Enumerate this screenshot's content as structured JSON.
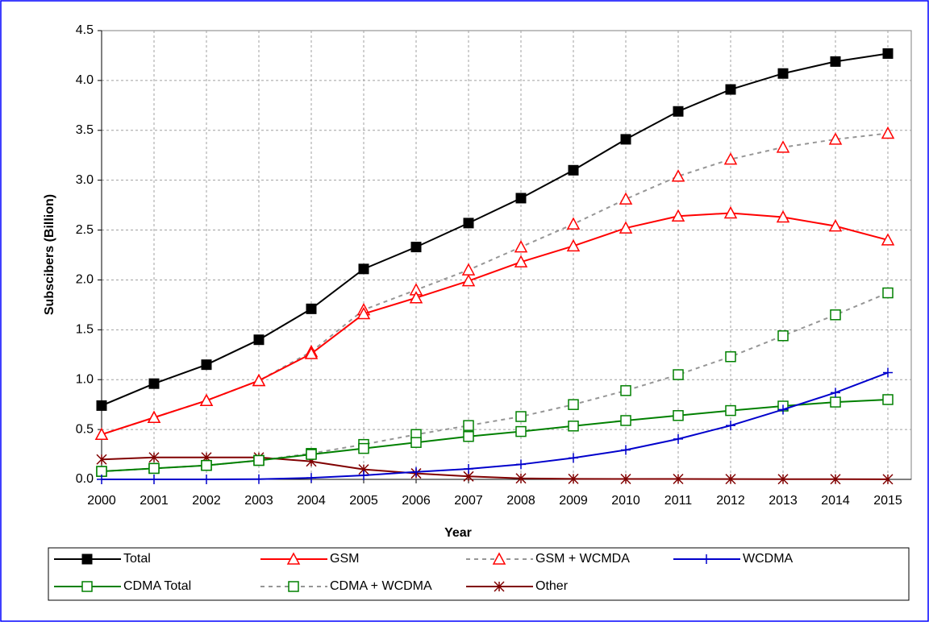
{
  "chart_data": {
    "type": "line",
    "x_label": "Year",
    "y_label": "Subscibers (Billion)",
    "categories": [
      "2000",
      "2001",
      "2002",
      "2003",
      "2004",
      "2005",
      "2006",
      "2007",
      "2008",
      "2009",
      "2010",
      "2011",
      "2012",
      "2013",
      "2014",
      "2015"
    ],
    "ylim": [
      0,
      4.5
    ],
    "yticks": [
      {
        "value": 0,
        "label": "0.0"
      },
      0.5,
      {
        "value": 1,
        "label": "1.0"
      },
      1.5,
      {
        "value": 2,
        "label": "2.0"
      },
      2.5,
      {
        "value": 3,
        "label": "3.0"
      },
      3.5,
      {
        "value": 4,
        "label": "4.0"
      },
      4.5
    ],
    "grid": true,
    "legend": "bottom",
    "series": [
      {
        "name": "Total",
        "color": "#000000",
        "marker_color": "#000000",
        "marker": "square-filled",
        "line_style": "solid",
        "values": [
          0.74,
          0.96,
          1.15,
          1.4,
          1.71,
          2.11,
          2.33,
          2.57,
          2.82,
          3.1,
          3.41,
          3.69,
          3.91,
          4.07,
          4.19,
          4.27
        ]
      },
      {
        "name": "GSM",
        "color": "#ff0000",
        "marker_color": "#ff0000",
        "marker": "triangle-open",
        "line_style": "solid",
        "values": [
          0.45,
          0.62,
          0.79,
          0.99,
          1.26,
          1.66,
          1.82,
          1.99,
          2.18,
          2.34,
          2.52,
          2.64,
          2.67,
          2.63,
          2.54,
          2.4
        ]
      },
      {
        "name": "GSM + WCMDA",
        "color": "#969696",
        "marker_color": "#ff0000",
        "marker": "triangle-open",
        "line_style": "dashed",
        "values": [
          0.45,
          0.62,
          0.79,
          0.99,
          1.28,
          1.7,
          1.9,
          2.1,
          2.33,
          2.56,
          2.81,
          3.04,
          3.21,
          3.33,
          3.41,
          3.47
        ]
      },
      {
        "name": "WCDMA",
        "color": "#0000cc",
        "marker_color": "#0000cc",
        "marker": "plus",
        "line_style": "solid",
        "values": [
          0,
          0,
          0,
          0.002,
          0.015,
          0.04,
          0.075,
          0.105,
          0.15,
          0.215,
          0.295,
          0.405,
          0.54,
          0.7,
          0.87,
          1.07
        ]
      },
      {
        "name": "CDMA Total",
        "color": "#008000",
        "marker_color": "#008000",
        "marker": "square-open",
        "line_style": "solid",
        "values": [
          0.08,
          0.11,
          0.14,
          0.19,
          0.25,
          0.31,
          0.37,
          0.43,
          0.48,
          0.535,
          0.59,
          0.64,
          0.69,
          0.735,
          0.775,
          0.8
        ]
      },
      {
        "name": "CDMA + WCDMA",
        "color": "#969696",
        "marker_color": "#008000",
        "marker": "square-open",
        "line_style": "dashed",
        "values": [
          0.08,
          0.11,
          0.14,
          0.19,
          0.26,
          0.35,
          0.45,
          0.54,
          0.63,
          0.75,
          0.89,
          1.05,
          1.23,
          1.44,
          1.65,
          1.87
        ]
      },
      {
        "name": "Other",
        "color": "#800000",
        "marker_color": "#800000",
        "marker": "asterisk",
        "line_style": "solid",
        "values": [
          0.2,
          0.22,
          0.22,
          0.22,
          0.18,
          0.1,
          0.06,
          0.03,
          0.01,
          0.005,
          0.004,
          0.004,
          0.003,
          0.002,
          0.002,
          0.001
        ]
      }
    ]
  }
}
